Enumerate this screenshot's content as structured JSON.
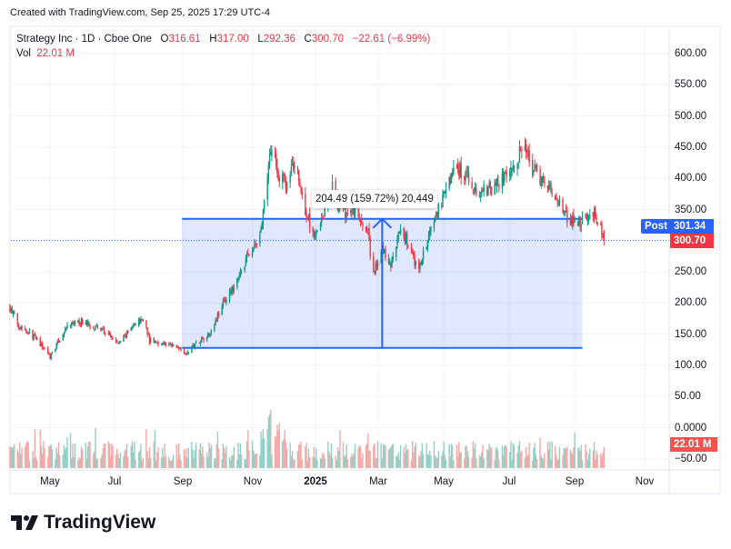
{
  "header": {
    "created": "Created with TradingView.com, Sep 25, 2025 17:29 UTC-4"
  },
  "legend": {
    "symbol": "Strategy Inc · 1D · Cboe One",
    "o_label": "O",
    "o": "316.61",
    "h_label": "H",
    "h": "317.00",
    "l_label": "L",
    "l": "292.36",
    "c_label": "C",
    "c": "300.70",
    "change": "−22.61 (−6.99%)",
    "vol_label": "Vol",
    "vol": "22.01 M"
  },
  "price_scale": [
    "600.00",
    "550.00",
    "500.00",
    "450.00",
    "400.00",
    "350.00",
    "250.00",
    "200.00",
    "150.00",
    "100.00",
    "50.00",
    "0.0000",
    "−50.00"
  ],
  "tags": {
    "post_label": "Post",
    "post_price": "301.34",
    "last_price": "300.70",
    "volume": "22.01 M"
  },
  "measure": {
    "label": "204.49 (159.72%) 20,449"
  },
  "time_axis": [
    "May",
    "Jul",
    "Sep",
    "Nov",
    "2025",
    "Mar",
    "May",
    "Jul",
    "Sep",
    "Nov"
  ],
  "brand": "TradingView",
  "colors": {
    "up": "#089981",
    "down": "#f23645",
    "accent": "#2962ff"
  },
  "chart_data": {
    "type": "candlestick",
    "title": "Strategy Inc · 1D · Cboe One",
    "ylim": [
      -60,
      620
    ],
    "measure_range": {
      "from_price": 128,
      "to_price": 335,
      "from_date": "2024-08-31",
      "to_date": "2025-09-05"
    },
    "last_close": 300.7,
    "post_price": 301.34,
    "close_path": [
      {
        "date": "2024-03-24",
        "close": 195
      },
      {
        "date": "2024-04-02",
        "close": 165
      },
      {
        "date": "2024-04-14",
        "close": 150
      },
      {
        "date": "2024-05-01",
        "close": 115
      },
      {
        "date": "2024-05-18",
        "close": 165
      },
      {
        "date": "2024-05-30",
        "close": 170
      },
      {
        "date": "2024-06-16",
        "close": 160
      },
      {
        "date": "2024-07-03",
        "close": 135
      },
      {
        "date": "2024-07-20",
        "close": 170
      },
      {
        "date": "2024-07-27",
        "close": 175
      },
      {
        "date": "2024-08-01",
        "close": 140
      },
      {
        "date": "2024-08-14",
        "close": 135
      },
      {
        "date": "2024-08-31",
        "close": 128
      },
      {
        "date": "2024-09-04",
        "close": 118
      },
      {
        "date": "2024-09-12",
        "close": 135
      },
      {
        "date": "2024-09-25",
        "close": 150
      },
      {
        "date": "2024-10-08",
        "close": 200
      },
      {
        "date": "2024-10-20",
        "close": 230
      },
      {
        "date": "2024-10-29",
        "close": 270
      },
      {
        "date": "2024-11-10",
        "close": 300
      },
      {
        "date": "2024-11-14",
        "close": 340
      },
      {
        "date": "2024-11-19",
        "close": 420
      },
      {
        "date": "2024-11-23",
        "close": 470
      },
      {
        "date": "2024-11-27",
        "close": 410
      },
      {
        "date": "2024-12-05",
        "close": 390
      },
      {
        "date": "2024-12-14",
        "close": 430
      },
      {
        "date": "2024-12-22",
        "close": 350
      },
      {
        "date": "2024-12-31",
        "close": 310
      },
      {
        "date": "2025-01-08",
        "close": 340
      },
      {
        "date": "2025-01-17",
        "close": 385
      },
      {
        "date": "2025-01-25",
        "close": 345
      },
      {
        "date": "2025-02-07",
        "close": 345
      },
      {
        "date": "2025-02-19",
        "close": 310
      },
      {
        "date": "2025-02-23",
        "close": 245
      },
      {
        "date": "2025-03-04",
        "close": 285
      },
      {
        "date": "2025-03-12",
        "close": 260
      },
      {
        "date": "2025-03-21",
        "close": 320
      },
      {
        "date": "2025-03-29",
        "close": 290
      },
      {
        "date": "2025-04-06",
        "close": 250
      },
      {
        "date": "2025-04-15",
        "close": 300
      },
      {
        "date": "2025-04-23",
        "close": 340
      },
      {
        "date": "2025-05-02",
        "close": 380
      },
      {
        "date": "2025-05-10",
        "close": 420
      },
      {
        "date": "2025-05-23",
        "close": 400
      },
      {
        "date": "2025-05-31",
        "close": 375
      },
      {
        "date": "2025-06-13",
        "close": 385
      },
      {
        "date": "2025-06-25",
        "close": 400
      },
      {
        "date": "2025-07-04",
        "close": 420
      },
      {
        "date": "2025-07-12",
        "close": 450
      },
      {
        "date": "2025-07-20",
        "close": 420
      },
      {
        "date": "2025-08-02",
        "close": 390
      },
      {
        "date": "2025-08-15",
        "close": 360
      },
      {
        "date": "2025-08-23",
        "close": 335
      },
      {
        "date": "2025-09-05",
        "close": 330
      },
      {
        "date": "2025-09-17",
        "close": 345
      },
      {
        "date": "2025-09-25",
        "close": 300.7
      }
    ]
  }
}
